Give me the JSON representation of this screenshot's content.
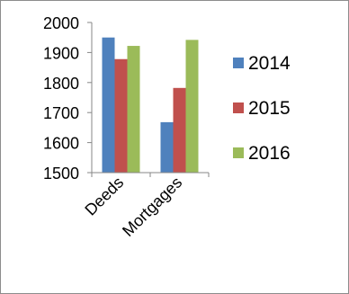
{
  "chart_data": {
    "type": "bar",
    "categories": [
      "Deeds",
      "Mortgages"
    ],
    "series": [
      {
        "name": "2014",
        "color": "#4f81bd",
        "values": [
          1950,
          1668
        ]
      },
      {
        "name": "2015",
        "color": "#c0504d",
        "values": [
          1878,
          1782
        ]
      },
      {
        "name": "2016",
        "color": "#9bbb59",
        "values": [
          1922,
          1942
        ]
      }
    ],
    "title": "",
    "xlabel": "",
    "ylabel": "",
    "ylim": [
      1500,
      2000
    ],
    "yticks": [
      "1500",
      "1600",
      "1700",
      "1800",
      "1900",
      "2000"
    ],
    "grid": false,
    "legend_position": "right"
  }
}
